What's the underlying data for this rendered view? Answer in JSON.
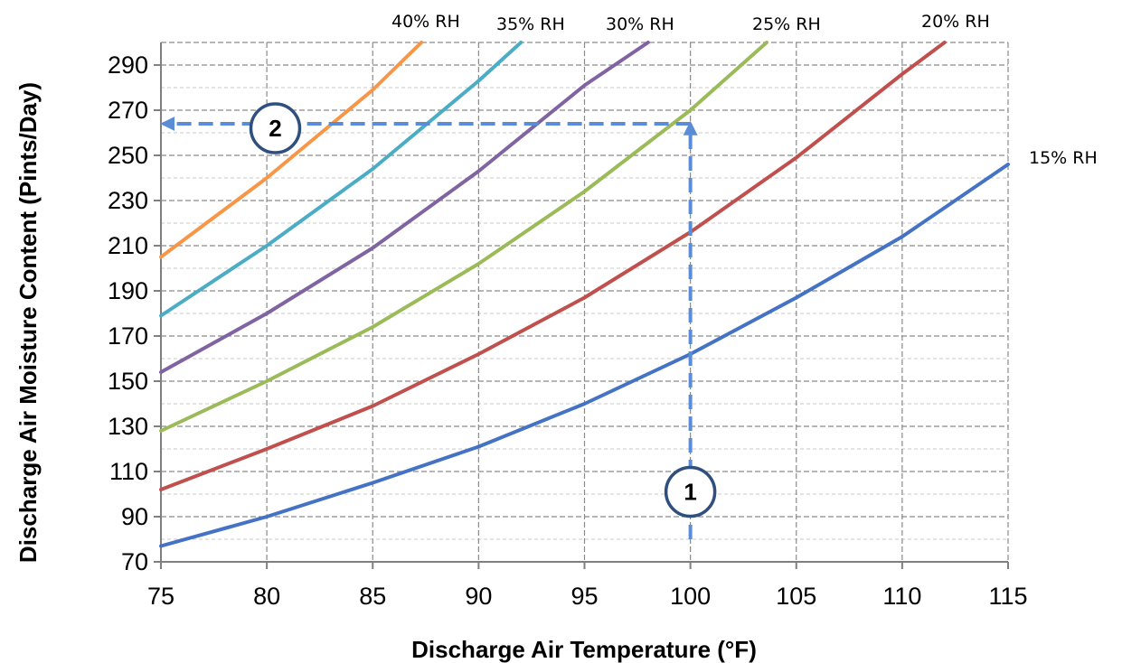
{
  "chart_data": {
    "type": "line",
    "xlabel": "Discharge Air Temperature (°F)",
    "ylabel": "Discharge Air Moisture Content (Pints/Day)",
    "xlim": [
      75,
      115
    ],
    "ylim": [
      70,
      300
    ],
    "x_ticks": [
      "75",
      "80",
      "85",
      "90",
      "95",
      "100",
      "105",
      "110",
      "115"
    ],
    "y_ticks": [
      "70",
      "90",
      "110",
      "130",
      "150",
      "170",
      "190",
      "210",
      "230",
      "250",
      "270",
      "290"
    ],
    "grid": true,
    "series": [
      {
        "name": "15% RH",
        "color": "#4472c4",
        "x": [
          75,
          80,
          85,
          90,
          95,
          100,
          105,
          110,
          115
        ],
        "y": [
          77,
          90,
          105,
          121,
          140,
          162,
          187,
          214,
          246
        ]
      },
      {
        "name": "20% RH",
        "color": "#c0504d",
        "x": [
          75,
          80,
          85,
          90,
          95,
          100,
          105,
          110,
          112
        ],
        "y": [
          102,
          120,
          139,
          162,
          187,
          216,
          249,
          286,
          300
        ]
      },
      {
        "name": "25% RH",
        "color": "#9bbb59",
        "x": [
          75,
          80,
          85,
          90,
          95,
          100,
          103.6
        ],
        "y": [
          128,
          150,
          174,
          202,
          234,
          270,
          300
        ]
      },
      {
        "name": "30% RH",
        "color": "#8064a2",
        "x": [
          75,
          80,
          85,
          90,
          95,
          98
        ],
        "y": [
          154,
          180,
          209,
          243,
          281,
          300
        ]
      },
      {
        "name": "35% RH",
        "color": "#4bacc6",
        "x": [
          75,
          80,
          85,
          90,
          92
        ],
        "y": [
          179,
          210,
          244,
          283,
          300
        ]
      },
      {
        "name": "40% RH",
        "color": "#f79646",
        "x": [
          75,
          80,
          85,
          87.3
        ],
        "y": [
          205,
          240,
          279,
          300
        ]
      }
    ],
    "annotations": [
      {
        "label": "1",
        "x": 100,
        "y": 101,
        "arrow": {
          "from": [
            100,
            80
          ],
          "to": [
            100,
            264
          ]
        }
      },
      {
        "label": "2",
        "x": 80.4,
        "y": 262,
        "arrow": {
          "from": [
            100,
            264
          ],
          "to": [
            75.1,
            264
          ]
        }
      }
    ],
    "annotation_color": "#5b8dd6"
  }
}
